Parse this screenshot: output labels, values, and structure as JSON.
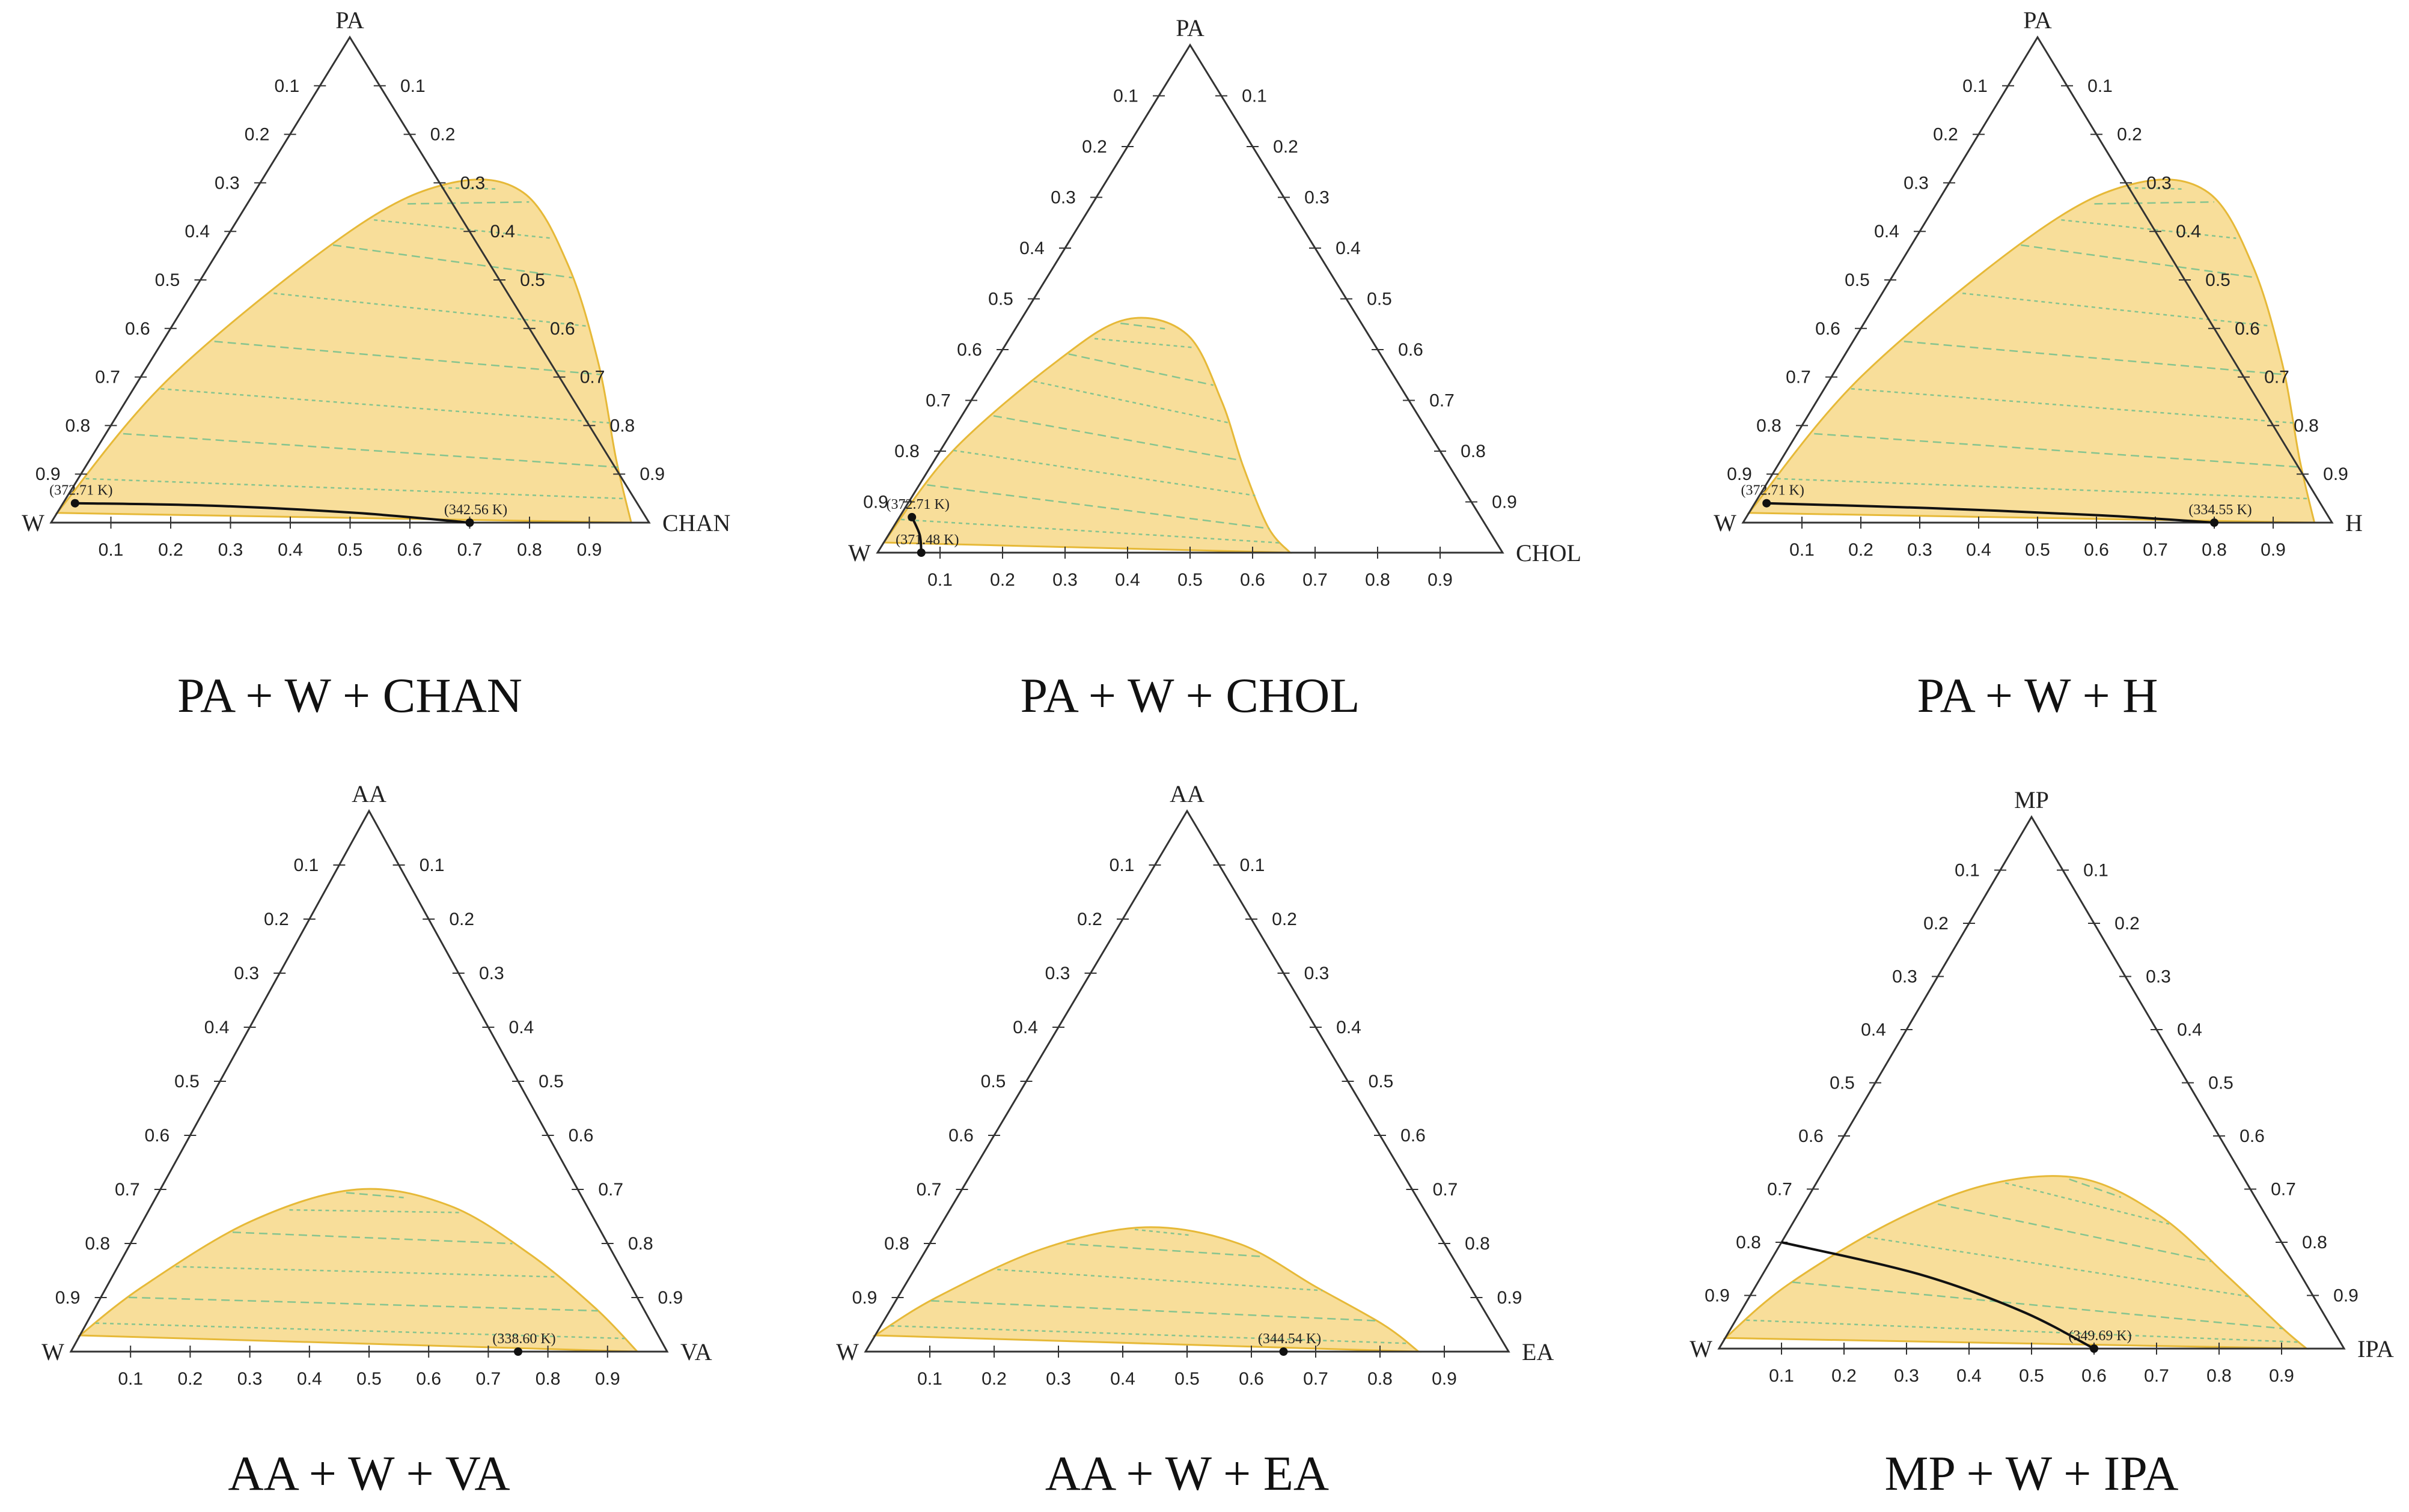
{
  "figure": {
    "ticks": [
      "0.1",
      "0.2",
      "0.3",
      "0.4",
      "0.5",
      "0.6",
      "0.7",
      "0.8",
      "0.9"
    ],
    "colors": {
      "region": "#f8de9a",
      "region_edge": "#e6b938",
      "tie_line": "#86c48f",
      "axis": "#333333",
      "distillation": "#111111"
    }
  },
  "chart_data": [
    {
      "type": "ternary",
      "title": "PA + W + CHAN",
      "vertices": {
        "top": "PA",
        "left": "W",
        "right": "CHAN"
      },
      "envelope": [
        [
          0,
          0.02
        ],
        [
          0.05,
          0.3
        ],
        [
          0.2,
          0.6
        ],
        [
          0.32,
          0.7
        ],
        [
          0.45,
          0.68
        ],
        [
          0.6,
          0.53
        ],
        [
          0.75,
          0.33
        ],
        [
          0.88,
          0.13
        ],
        [
          0.97,
          0.0
        ]
      ],
      "tie_line_count": 9,
      "distillation_line": [
        [
          0.02,
          0.04
        ],
        [
          0.25,
          0.035
        ],
        [
          0.5,
          0.02
        ],
        [
          0.7,
          0.0
        ]
      ],
      "annotations": [
        {
          "label": "(372.71 K)",
          "point": [
            0.02,
            0.04
          ]
        },
        {
          "label": "(342.56 K)",
          "point": [
            0.7,
            0.0
          ]
        }
      ]
    },
    {
      "type": "ternary",
      "title": "PA + W + CHOL",
      "vertices": {
        "top": "PA",
        "left": "W",
        "right": "CHOL"
      },
      "envelope": [
        [
          0,
          0.02
        ],
        [
          0.02,
          0.2
        ],
        [
          0.1,
          0.38
        ],
        [
          0.17,
          0.46
        ],
        [
          0.28,
          0.43
        ],
        [
          0.4,
          0.3
        ],
        [
          0.5,
          0.17
        ],
        [
          0.6,
          0.05
        ],
        [
          0.66,
          0.0
        ]
      ],
      "tie_line_count": 8,
      "distillation_line": [
        [
          0.02,
          0.07
        ],
        [
          0.05,
          0.035
        ],
        [
          0.07,
          0.0
        ]
      ],
      "annotations": [
        {
          "label": "(372.71 K)",
          "point": [
            0.02,
            0.07
          ]
        },
        {
          "label": "(371.48 K)",
          "point": [
            0.07,
            0.0
          ]
        }
      ]
    },
    {
      "type": "ternary",
      "title": "PA + W + H",
      "vertices": {
        "top": "PA",
        "left": "W",
        "right": "H"
      },
      "envelope": [
        [
          0,
          0.02
        ],
        [
          0.05,
          0.3
        ],
        [
          0.2,
          0.6
        ],
        [
          0.32,
          0.7
        ],
        [
          0.45,
          0.68
        ],
        [
          0.6,
          0.53
        ],
        [
          0.75,
          0.33
        ],
        [
          0.88,
          0.13
        ],
        [
          0.97,
          0.0
        ]
      ],
      "tie_line_count": 9,
      "distillation_line": [
        [
          0.02,
          0.04
        ],
        [
          0.3,
          0.03
        ],
        [
          0.6,
          0.015
        ],
        [
          0.8,
          0.0
        ]
      ],
      "annotations": [
        {
          "label": "(372.71 K)",
          "point": [
            0.02,
            0.04
          ]
        },
        {
          "label": "(334.55 K)",
          "point": [
            0.8,
            0.0
          ]
        }
      ]
    },
    {
      "type": "ternary",
      "title": "AA + W + VA",
      "vertices": {
        "top": "AA",
        "left": "W",
        "right": "VA"
      },
      "envelope": [
        [
          0,
          0.03
        ],
        [
          0.06,
          0.12
        ],
        [
          0.18,
          0.24
        ],
        [
          0.33,
          0.3
        ],
        [
          0.5,
          0.27
        ],
        [
          0.68,
          0.18
        ],
        [
          0.84,
          0.08
        ],
        [
          0.95,
          0.0
        ]
      ],
      "tie_line_count": 6,
      "distillation_line": [],
      "annotations": [
        {
          "label": "(338.60 K)",
          "point": [
            0.75,
            0.0
          ]
        }
      ]
    },
    {
      "type": "ternary",
      "title": "AA + W + EA",
      "vertices": {
        "top": "AA",
        "left": "W",
        "right": "EA"
      },
      "envelope": [
        [
          0,
          0.03
        ],
        [
          0.06,
          0.1
        ],
        [
          0.18,
          0.19
        ],
        [
          0.32,
          0.23
        ],
        [
          0.48,
          0.2
        ],
        [
          0.64,
          0.12
        ],
        [
          0.78,
          0.05
        ],
        [
          0.86,
          0.0
        ]
      ],
      "tie_line_count": 5,
      "distillation_line": [],
      "annotations": [
        {
          "label": "(344.54 K)",
          "point": [
            0.65,
            0.0
          ]
        }
      ]
    },
    {
      "type": "ternary",
      "title": "MP + W + IPA",
      "vertices": {
        "top": "MP",
        "left": "W",
        "right": "IPA"
      },
      "envelope": [
        [
          0,
          0.02
        ],
        [
          0.05,
          0.12
        ],
        [
          0.16,
          0.24
        ],
        [
          0.28,
          0.31
        ],
        [
          0.42,
          0.32
        ],
        [
          0.58,
          0.25
        ],
        [
          0.74,
          0.14
        ],
        [
          0.88,
          0.04
        ],
        [
          0.94,
          0.0
        ]
      ],
      "tie_line_count": 6,
      "distillation_line": [
        [
          0.0,
          0.2
        ],
        [
          0.25,
          0.14
        ],
        [
          0.45,
          0.07
        ],
        [
          0.6,
          0.0
        ]
      ],
      "annotations": [
        {
          "label": "(349.69 K)",
          "point": [
            0.6,
            0.0
          ]
        }
      ]
    }
  ]
}
